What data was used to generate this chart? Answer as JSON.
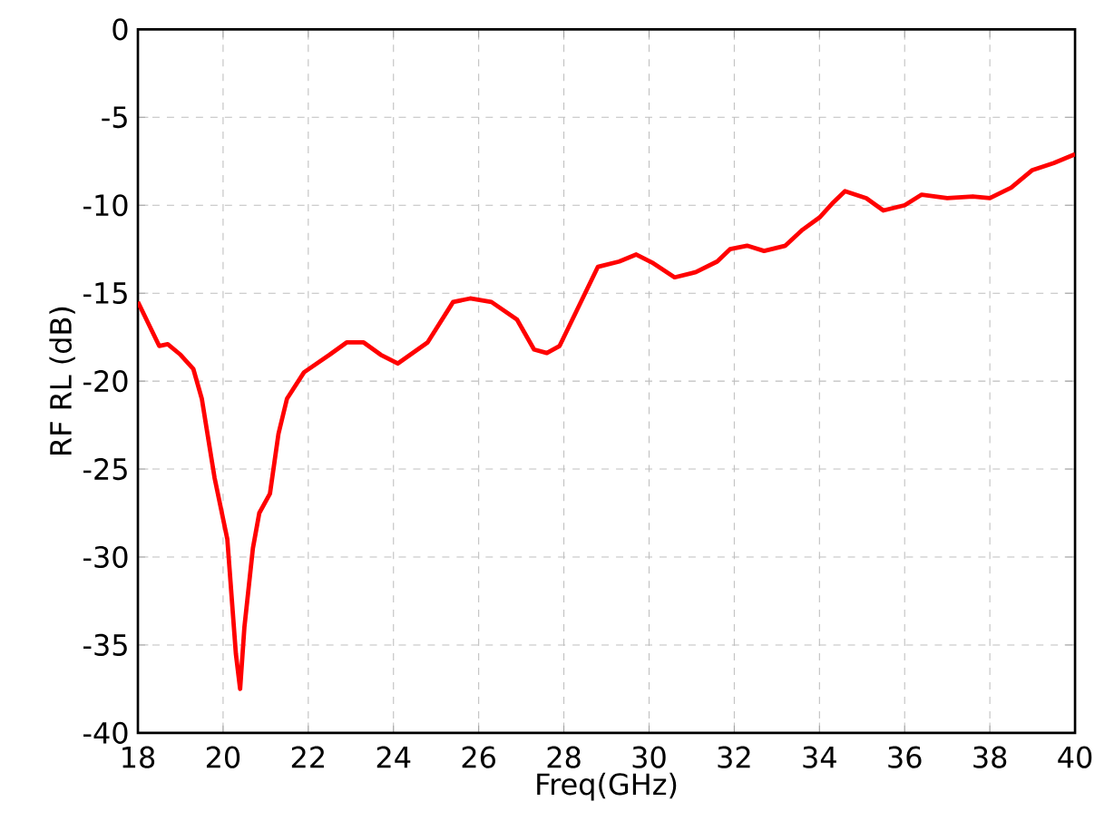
{
  "chart_data": {
    "type": "line",
    "xlabel": "Freq(GHz)",
    "ylabel": "RF RL  (dB)",
    "xlim": [
      18,
      40
    ],
    "ylim": [
      -40,
      0
    ],
    "xticks": [
      18,
      20,
      22,
      24,
      26,
      28,
      30,
      32,
      34,
      36,
      38,
      40
    ],
    "yticks": [
      -40,
      -35,
      -30,
      -25,
      -20,
      -15,
      -10,
      -5,
      0
    ],
    "grid": true,
    "marker": "none",
    "line_style": "solid",
    "series": [
      {
        "color": "#ff0000",
        "x": [
          18,
          18.5,
          18.7,
          19,
          19.3,
          19.5,
          19.8,
          20.1,
          20.3,
          20.4,
          20.5,
          20.7,
          20.85,
          21.1,
          21.3,
          21.5,
          21.9,
          22.5,
          22.9,
          23.3,
          23.7,
          24.1,
          24.8,
          25.4,
          25.8,
          26.3,
          26.9,
          27.3,
          27.6,
          27.9,
          28.3,
          28.8,
          29.3,
          29.7,
          30.1,
          30.6,
          31.1,
          31.6,
          31.9,
          32.3,
          32.7,
          33.2,
          33.6,
          34.0,
          34.3,
          34.6,
          35.1,
          35.5,
          36.0,
          36.4,
          37.0,
          37.6,
          38.0,
          38.5,
          39.0,
          39.5,
          40.0
        ],
        "values": [
          -15.5,
          -18,
          -17.9,
          -18.5,
          -19.3,
          -21,
          -25.5,
          -29,
          -35.5,
          -37.5,
          -34,
          -29.5,
          -27.5,
          -26.4,
          -23,
          -21,
          -19.5,
          -18.5,
          -17.8,
          -17.8,
          -18.5,
          -19,
          -17.8,
          -15.5,
          -15.3,
          -15.5,
          -16.5,
          -18.2,
          -18.4,
          -18,
          -16,
          -13.5,
          -13.2,
          -12.8,
          -13.3,
          -14.1,
          -13.8,
          -13.2,
          -12.5,
          -12.3,
          -12.6,
          -12.3,
          -11.4,
          -10.7,
          -9.9,
          -9.2,
          -9.6,
          -10.3,
          -10.0,
          -9.4,
          -9.6,
          -9.5,
          -9.6,
          -9.0,
          -8.0,
          -7.6,
          -7.1
        ]
      }
    ]
  }
}
